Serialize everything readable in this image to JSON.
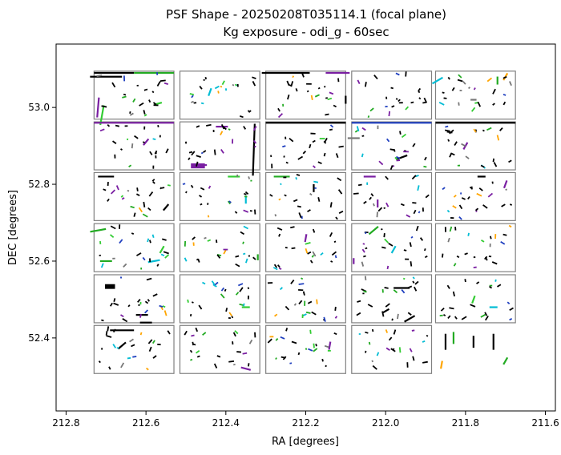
{
  "chart_data": {
    "type": "scatter",
    "title_line1": "PSF Shape - 20250208T035114.1 (focal plane)",
    "title_line2": "Kg exposure - odi_g - 60sec",
    "xlabel": "RA [degrees]",
    "ylabel": "DEC [degrees]",
    "xlim": [
      212.825,
      211.575
    ],
    "ylim": [
      52.21,
      53.165
    ],
    "x_inverted": true,
    "x_ticks": [
      212.8,
      212.6,
      212.4,
      212.2,
      212.0,
      211.8,
      211.6
    ],
    "x_tick_labels": [
      "212.8",
      "212.6",
      "212.4",
      "212.2",
      "212.0",
      "211.8",
      "211.6"
    ],
    "y_ticks": [
      52.4,
      52.6,
      52.8,
      53.0
    ],
    "y_tick_labels": [
      "52.4",
      "52.6",
      "52.8",
      "53.0"
    ],
    "grid": false,
    "ccd_outline_color": "#808080",
    "whisker_colors": [
      "#000000",
      "#22aa22",
      "#33cc33",
      "#7a1fa2",
      "#00bcd4",
      "#1f3fbf",
      "#ffa500",
      "#777777"
    ],
    "ccd_grid": {
      "columns_ra_centers": [
        212.63,
        212.415,
        212.2,
        211.985,
        211.775
      ],
      "rows_dec_centers": [
        53.032,
        52.9,
        52.768,
        52.635,
        52.502,
        52.37
      ],
      "ccd_width_ra": 0.2,
      "ccd_height_dec": 0.125,
      "missing": [
        [
          5,
          4
        ]
      ]
    },
    "whiskers": [
      {
        "ra": 212.68,
        "dec": 53.09,
        "len": 0.1,
        "angle": 0,
        "color": "#000000"
      },
      {
        "ra": 212.58,
        "dec": 53.09,
        "len": 0.1,
        "angle": 0,
        "color": "#22aa22"
      },
      {
        "ra": 212.7,
        "dec": 53.08,
        "len": 0.08,
        "angle": 0,
        "color": "#000000"
      },
      {
        "ra": 212.72,
        "dec": 53.0,
        "len": 0.05,
        "angle": 85,
        "color": "#7a1fa2"
      },
      {
        "ra": 212.71,
        "dec": 52.98,
        "len": 0.05,
        "angle": 80,
        "color": "#33cc33"
      },
      {
        "ra": 212.57,
        "dec": 53.01,
        "len": 0.02,
        "angle": 15,
        "color": "#33cc33"
      },
      {
        "ra": 212.44,
        "dec": 53.04,
        "len": 0.02,
        "angle": 70,
        "color": "#00bcd4"
      },
      {
        "ra": 212.25,
        "dec": 53.09,
        "len": 0.12,
        "angle": 0,
        "color": "#000000"
      },
      {
        "ra": 212.12,
        "dec": 53.09,
        "len": 0.06,
        "angle": 0,
        "color": "#7a1fa2"
      },
      {
        "ra": 212.1,
        "dec": 53.02,
        "len": 0.02,
        "angle": 90,
        "color": "#000000"
      },
      {
        "ra": 211.87,
        "dec": 53.07,
        "len": 0.03,
        "angle": 30,
        "color": "#00bcd4"
      },
      {
        "ra": 211.72,
        "dec": 53.07,
        "len": 0.02,
        "angle": 90,
        "color": "#22aa22"
      },
      {
        "ra": 211.7,
        "dec": 53.08,
        "len": 0.02,
        "angle": 60,
        "color": "#ffa500"
      },
      {
        "ra": 211.78,
        "dec": 53.02,
        "len": 0.015,
        "angle": 0,
        "color": "#777777"
      },
      {
        "ra": 212.63,
        "dec": 52.96,
        "len": 0.2,
        "angle": 0,
        "color": "#7a1fa2"
      },
      {
        "ra": 212.2,
        "dec": 52.96,
        "len": 0.2,
        "angle": 0,
        "color": "#000000"
      },
      {
        "ra": 211.985,
        "dec": 52.96,
        "len": 0.2,
        "angle": 0,
        "color": "#1f3fbf"
      },
      {
        "ra": 211.775,
        "dec": 52.96,
        "len": 0.2,
        "angle": 0,
        "color": "#000000"
      },
      {
        "ra": 212.41,
        "dec": 52.95,
        "len": 0.03,
        "angle": 0,
        "color": "#7a1fa2"
      },
      {
        "ra": 212.33,
        "dec": 52.89,
        "len": 0.13,
        "angle": 88,
        "color": "#000000"
      },
      {
        "ra": 212.46,
        "dec": 52.85,
        "len": 0.025,
        "angle": 0,
        "color": "#7a1fa2"
      },
      {
        "ra": 212.6,
        "dec": 52.91,
        "len": 0.02,
        "angle": 50,
        "color": "#7a1fa2"
      },
      {
        "ra": 212.08,
        "dec": 52.92,
        "len": 0.03,
        "angle": 0,
        "color": "#777777"
      },
      {
        "ra": 211.96,
        "dec": 52.87,
        "len": 0.03,
        "angle": 20,
        "color": "#000000"
      },
      {
        "ra": 211.8,
        "dec": 52.9,
        "len": 0.02,
        "angle": 60,
        "color": "#7a1fa2"
      },
      {
        "ra": 212.7,
        "dec": 52.82,
        "len": 0.04,
        "angle": 0,
        "color": "#000000"
      },
      {
        "ra": 212.38,
        "dec": 52.82,
        "len": 0.03,
        "angle": 0,
        "color": "#33cc33"
      },
      {
        "ra": 212.26,
        "dec": 52.82,
        "len": 0.04,
        "angle": 0,
        "color": "#22aa22"
      },
      {
        "ra": 212.18,
        "dec": 52.79,
        "len": 0.02,
        "angle": 90,
        "color": "#000000"
      },
      {
        "ra": 212.04,
        "dec": 52.82,
        "len": 0.03,
        "angle": 0,
        "color": "#7a1fa2"
      },
      {
        "ra": 211.76,
        "dec": 52.82,
        "len": 0.02,
        "angle": 0,
        "color": "#000000"
      },
      {
        "ra": 211.7,
        "dec": 52.8,
        "len": 0.02,
        "angle": 70,
        "color": "#7a1fa2"
      },
      {
        "ra": 212.55,
        "dec": 52.74,
        "len": 0.02,
        "angle": 50,
        "color": "#000000"
      },
      {
        "ra": 212.35,
        "dec": 52.76,
        "len": 0.02,
        "angle": 90,
        "color": "#00bcd4"
      },
      {
        "ra": 212.02,
        "dec": 52.75,
        "len": 0.02,
        "angle": 90,
        "color": "#7a1fa2"
      },
      {
        "ra": 212.72,
        "dec": 52.68,
        "len": 0.04,
        "angle": 10,
        "color": "#22aa22"
      },
      {
        "ra": 212.56,
        "dec": 52.63,
        "len": 0.02,
        "angle": 60,
        "color": "#33cc33"
      },
      {
        "ra": 212.58,
        "dec": 52.6,
        "len": 0.03,
        "angle": 10,
        "color": "#00bcd4"
      },
      {
        "ra": 212.7,
        "dec": 52.6,
        "len": 0.03,
        "angle": 0,
        "color": "#22aa22"
      },
      {
        "ra": 212.32,
        "dec": 52.61,
        "len": 0.015,
        "angle": 90,
        "color": "#22aa22"
      },
      {
        "ra": 212.2,
        "dec": 52.66,
        "len": 0.02,
        "angle": 80,
        "color": "#7a1fa2"
      },
      {
        "ra": 212.08,
        "dec": 52.6,
        "len": 0.015,
        "angle": 90,
        "color": "#7a1fa2"
      },
      {
        "ra": 212.03,
        "dec": 52.68,
        "len": 0.03,
        "angle": 40,
        "color": "#22aa22"
      },
      {
        "ra": 211.98,
        "dec": 52.63,
        "len": 0.02,
        "angle": 60,
        "color": "#00bcd4"
      },
      {
        "ra": 212.69,
        "dec": 52.53,
        "len": 0.025,
        "angle": 0,
        "color": "#000000"
      },
      {
        "ra": 212.61,
        "dec": 52.46,
        "len": 0.03,
        "angle": 0,
        "color": "#000000"
      },
      {
        "ra": 212.6,
        "dec": 52.44,
        "len": 0.03,
        "angle": 0,
        "color": "#000000"
      },
      {
        "ra": 212.35,
        "dec": 52.48,
        "len": 0.02,
        "angle": 0,
        "color": "#33cc33"
      },
      {
        "ra": 211.96,
        "dec": 52.53,
        "len": 0.04,
        "angle": 0,
        "color": "#000000"
      },
      {
        "ra": 212.0,
        "dec": 52.47,
        "len": 0.02,
        "angle": 30,
        "color": "#000000"
      },
      {
        "ra": 211.94,
        "dec": 52.45,
        "len": 0.03,
        "angle": 30,
        "color": "#000000"
      },
      {
        "ra": 211.78,
        "dec": 52.5,
        "len": 0.02,
        "angle": 70,
        "color": "#33cc33"
      },
      {
        "ra": 211.73,
        "dec": 52.48,
        "len": 0.02,
        "angle": 0,
        "color": "#00bcd4"
      },
      {
        "ra": 212.66,
        "dec": 52.42,
        "len": 0.06,
        "angle": 0,
        "color": "#000000"
      },
      {
        "ra": 212.66,
        "dec": 52.38,
        "len": 0.025,
        "angle": 40,
        "color": "#000000"
      },
      {
        "ra": 212.35,
        "dec": 52.32,
        "len": 0.025,
        "angle": -15,
        "color": "#7a1fa2"
      },
      {
        "ra": 212.14,
        "dec": 52.38,
        "len": 0.02,
        "angle": 80,
        "color": "#7a1fa2"
      },
      {
        "ra": 211.85,
        "dec": 52.39,
        "len": 0.04,
        "angle": 90,
        "color": "#000000"
      },
      {
        "ra": 211.83,
        "dec": 52.4,
        "len": 0.03,
        "angle": 90,
        "color": "#22aa22"
      },
      {
        "ra": 211.78,
        "dec": 52.39,
        "len": 0.03,
        "angle": 90,
        "color": "#000000"
      },
      {
        "ra": 211.73,
        "dec": 52.39,
        "len": 0.04,
        "angle": 90,
        "color": "#000000"
      },
      {
        "ra": 211.86,
        "dec": 52.33,
        "len": 0.02,
        "angle": 80,
        "color": "#ffa500"
      },
      {
        "ra": 211.7,
        "dec": 52.34,
        "len": 0.02,
        "angle": 60,
        "color": "#22aa22"
      }
    ],
    "blobs": [
      {
        "ra": 212.47,
        "dec": 52.848,
        "w": 0.035,
        "h": 0.013,
        "color": "#7a1fa2"
      },
      {
        "ra": 212.69,
        "dec": 52.535,
        "w": 0.025,
        "h": 0.01,
        "color": "#000000"
      }
    ]
  }
}
